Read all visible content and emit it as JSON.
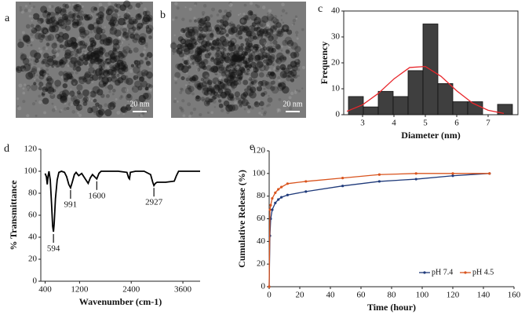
{
  "images": [
    {
      "label": "a",
      "scale": "20 nm"
    },
    {
      "label": "b",
      "scale": "20 nm"
    }
  ],
  "chart_data": [
    {
      "type": "histogram",
      "panel": "c",
      "x_label": "Diameter (nm)",
      "y_label": "Frequency",
      "bins": [
        2.55,
        3.025,
        3.5,
        3.975,
        4.45,
        4.925,
        5.4,
        5.875,
        6.35,
        6.825,
        7.3,
        7.775
      ],
      "counts": [
        7,
        3,
        9,
        7,
        17,
        35,
        12,
        5,
        5,
        0,
        4
      ],
      "color": "#3f3f3f",
      "fit": {
        "color": "#e8262b",
        "x": [
          2.5,
          3,
          3.5,
          4,
          4.5,
          5,
          5.5,
          6,
          6.5,
          7,
          7.5
        ],
        "values": [
          1.3,
          3.8,
          8.2,
          13.8,
          18.2,
          18.6,
          14.8,
          9.2,
          4.5,
          1.7,
          0.5
        ]
      },
      "xlim": [
        2.4,
        7.95
      ],
      "xticks": [
        3,
        4,
        5,
        6,
        7
      ],
      "ylim": [
        0,
        40
      ],
      "yticks": [
        0,
        10,
        20,
        30,
        40
      ]
    },
    {
      "type": "line",
      "panel": "d",
      "x_label": "Wavenumber (cm-1)",
      "y_label": "% Transmittance",
      "color": "#000000",
      "x": [
        400,
        430,
        450,
        470,
        490,
        520,
        550,
        575,
        594,
        610,
        640,
        680,
        720,
        780,
        850,
        900,
        950,
        991,
        1030,
        1080,
        1120,
        1180,
        1250,
        1300,
        1350,
        1400,
        1450,
        1500,
        1550,
        1600,
        1650,
        1700,
        1900,
        2100,
        2300,
        2340,
        2360,
        2380,
        2500,
        2700,
        2850,
        2900,
        2927,
        2960,
        3000,
        3200,
        3400,
        3450,
        3500,
        3700,
        4000
      ],
      "values": [
        98,
        95,
        88,
        96,
        100,
        92,
        70,
        50,
        45,
        52,
        75,
        92,
        99,
        100,
        99,
        95,
        88,
        85,
        90,
        97,
        99,
        96,
        98,
        95,
        92,
        89,
        94,
        97,
        95,
        93,
        98,
        100,
        100,
        100,
        99,
        94,
        93,
        99,
        100,
        100,
        97,
        90,
        87,
        89,
        90,
        90,
        91,
        96,
        100,
        100,
        100
      ],
      "annotations": [
        {
          "label": "594",
          "x": 594
        },
        {
          "label": "991",
          "x": 991
        },
        {
          "label": "1600",
          "x": 1600
        },
        {
          "label": "2927",
          "x": 2927
        }
      ],
      "xlim": [
        300,
        4000
      ],
      "xticks": [
        400,
        1200,
        2400,
        3600
      ],
      "ylim": [
        0,
        120
      ],
      "yticks": [
        0,
        20,
        40,
        60,
        80,
        100,
        120
      ]
    },
    {
      "type": "line",
      "panel": "e",
      "x_label": "Time (hour)",
      "y_label": "Cumulative Release (%)",
      "markers": true,
      "x": [
        0,
        0.5,
        1,
        2,
        4,
        6,
        8,
        12,
        24,
        48,
        72,
        96,
        120,
        144
      ],
      "series": [
        {
          "name": "pH 7.4",
          "color": "#1f3a7a",
          "values": [
            0,
            45,
            60,
            68,
            74,
            77,
            79,
            81,
            84,
            89,
            93,
            95,
            98,
            100
          ]
        },
        {
          "name": "pH 4.5",
          "color": "#d9541e",
          "values": [
            0,
            68,
            72,
            78,
            83,
            86,
            88,
            91,
            93,
            96,
            99,
            100,
            100,
            100
          ]
        }
      ],
      "legend": "bottom-right",
      "xlim": [
        0,
        160
      ],
      "xticks": [
        0,
        20,
        40,
        60,
        80,
        100,
        120,
        140,
        160
      ],
      "ylim": [
        0,
        120
      ],
      "yticks": [
        0,
        20,
        40,
        60,
        80,
        100,
        120
      ]
    }
  ]
}
